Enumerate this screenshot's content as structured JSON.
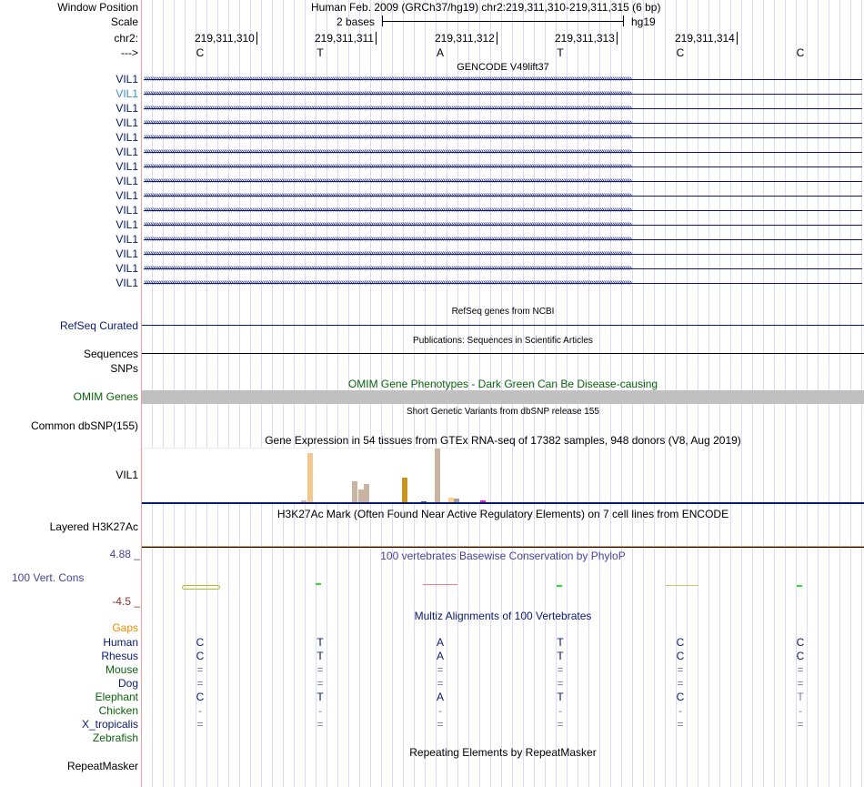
{
  "header": {
    "window_position_label": "Window Position",
    "window_position": "Human Feb. 2009 (GRCh37/hg19)   chr2:219,311,310-219,311,315 (6 bp)",
    "scale_label": "Scale",
    "scale_text": "2 bases",
    "assembly": "hg19",
    "chrom_label": "chr2:",
    "strand_label": "--->"
  },
  "positions": [
    "219,311,310",
    "219,311,311",
    "219,311,312",
    "219,311,313",
    "219,311,314"
  ],
  "bases": [
    "C",
    "T",
    "A",
    "T",
    "C",
    "C"
  ],
  "gencode": {
    "title": "GENCODE V49lift37",
    "genes": [
      "VIL1",
      "VIL1",
      "VIL1",
      "VIL1",
      "VIL1",
      "VIL1",
      "VIL1",
      "VIL1",
      "VIL1",
      "VIL1",
      "VIL1",
      "VIL1",
      "VIL1",
      "VIL1",
      "VIL1"
    ],
    "arrow_glyph": "›"
  },
  "refseq": {
    "title": "RefSeq genes from NCBI",
    "label": "RefSeq Curated"
  },
  "pubs": {
    "title": "Publications: Sequences in Scientific Articles",
    "label": "Sequences"
  },
  "snps": {
    "label": "SNPs"
  },
  "omim": {
    "title": "OMIM Gene Phenotypes - Dark Green Can Be Disease-causing",
    "label": "OMIM Genes"
  },
  "dbsnp": {
    "title": "Short Genetic Variants from dbSNP release 155",
    "label": "Common dbSNP(155)"
  },
  "gtex": {
    "title": "Gene Expression in 54 tissues from GTEx RNA-seq of 17382 samples, 948 donors (V8, Aug 2019)",
    "label": "VIL1",
    "bars": [
      {
        "value": 1,
        "color": "#d8d03a"
      },
      {
        "value": 3,
        "color": "#c8b4a0"
      },
      {
        "value": 55,
        "color": "#f0c890"
      },
      {
        "value": 24,
        "color": "#c8b4a0"
      },
      {
        "value": 15,
        "color": "#c8b4a0"
      },
      {
        "value": 21,
        "color": "#c8b4a0"
      },
      {
        "value": 1,
        "color": "#88c040"
      },
      {
        "value": 28,
        "color": "#c8961e"
      },
      {
        "value": 2,
        "color": "#3060c0"
      },
      {
        "value": 1,
        "color": "#3090e0"
      },
      {
        "value": 60,
        "color": "#c8b4a0"
      },
      {
        "value": 1,
        "color": "#c8b4a0"
      },
      {
        "value": 6,
        "color": "#ffd090"
      },
      {
        "value": 5,
        "color": "#a0a0a0"
      },
      {
        "value": 3,
        "color": "#e020e0"
      }
    ]
  },
  "h3k27ac": {
    "title": "H3K27Ac Mark (Often Found Near Active Regulatory Elements) on 7 cell lines from ENCODE",
    "label": "Layered H3K27Ac"
  },
  "phylop": {
    "title": "100 vertebrates Basewise Conservation by PhyloP",
    "label": "100 Vert. Cons",
    "max": "4.88 _",
    "min": "-4.5 _"
  },
  "multiz": {
    "title": "Multiz Alignments of 100 Vertebrates",
    "gaps_label": "Gaps",
    "species": [
      {
        "name": "Human",
        "color": "#0a1a6e",
        "bases": [
          "C",
          "T",
          "A",
          "T",
          "C",
          "C"
        ]
      },
      {
        "name": "Rhesus",
        "color": "#0a1a6e",
        "bases": [
          "C",
          "T",
          "A",
          "T",
          "C",
          "C"
        ]
      },
      {
        "name": "Mouse",
        "color": "#0a640a",
        "bases": [
          "=",
          "=",
          "=",
          "=",
          "=",
          "="
        ]
      },
      {
        "name": "Dog",
        "color": "#0a1a6e",
        "bases": [
          "=",
          "=",
          "=",
          "=",
          "=",
          "="
        ]
      },
      {
        "name": "Elephant",
        "color": "#0a640a",
        "bases": [
          "C",
          "T",
          "A",
          "T",
          "C",
          "T"
        ]
      },
      {
        "name": "Chicken",
        "color": "#0a640a",
        "bases": [
          "-",
          "-",
          "-",
          "-",
          "-",
          "-"
        ]
      },
      {
        "name": "X_tropicalis",
        "color": "#0a1a6e",
        "bases": [
          "=",
          "=",
          "=",
          "=",
          "=",
          "="
        ]
      },
      {
        "name": "Zebrafish",
        "color": "#0a640a",
        "bases": [
          "",
          "",
          "",
          "",
          "",
          ""
        ]
      }
    ]
  },
  "repeatmasker": {
    "title": "Repeating Elements by RepeatMasker",
    "label": "RepeatMasker"
  }
}
